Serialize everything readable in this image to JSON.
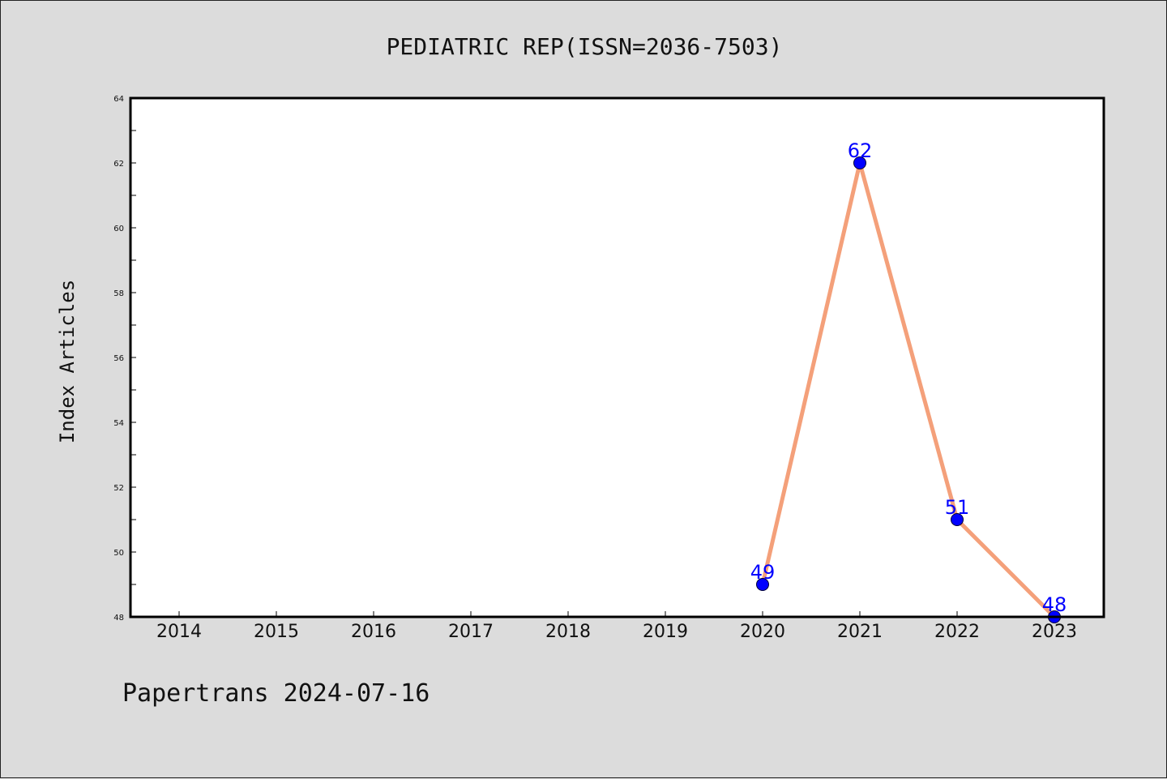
{
  "chart_data": {
    "type": "line",
    "title": "PEDIATRIC REP(ISSN=2036-7503)",
    "xlabel": "",
    "ylabel": "Index Articles",
    "categories": [
      "2014",
      "2015",
      "2016",
      "2017",
      "2018",
      "2019",
      "2020",
      "2021",
      "2022",
      "2023"
    ],
    "yticks": [
      "48",
      "50",
      "52",
      "54",
      "56",
      "58",
      "60",
      "62",
      "64"
    ],
    "ylim": [
      48,
      64
    ],
    "series": [
      {
        "x": [
          "2020",
          "2021",
          "2022",
          "2023"
        ],
        "values": [
          49,
          62,
          51,
          48
        ]
      }
    ],
    "data_labels": [
      "49",
      "62",
      "51",
      "48"
    ],
    "grid": false,
    "legend": "none"
  },
  "footer": "Papertrans 2024-07-16",
  "colors": {
    "background": "#dcdcdc",
    "plot_background": "#ffffff",
    "line": "#f4a07a",
    "marker": "#0000ff",
    "data_label": "#0000ff",
    "axis": "#000000"
  }
}
